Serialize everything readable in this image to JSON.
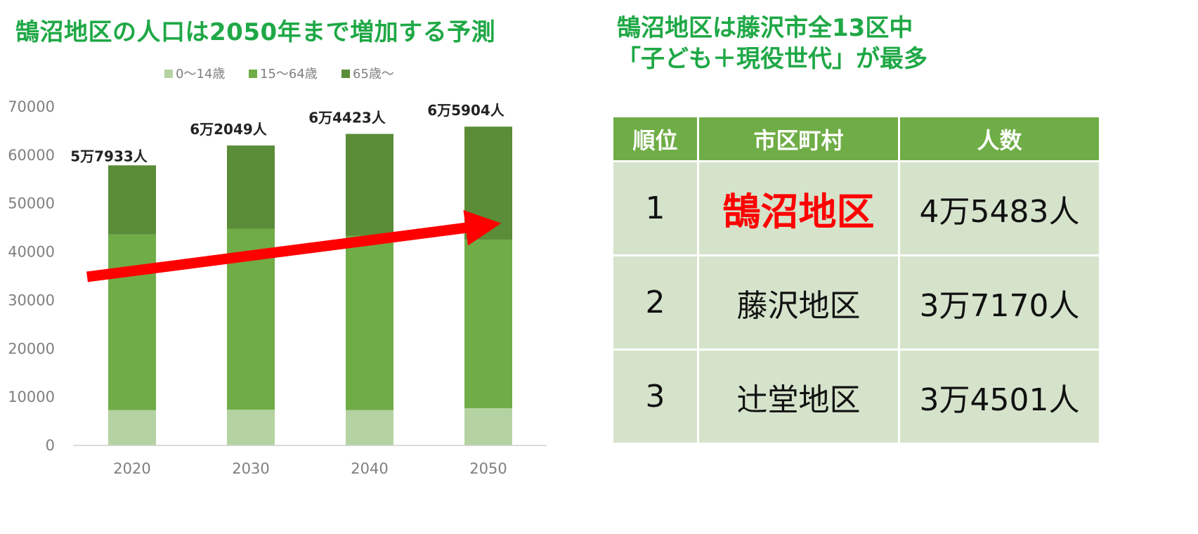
{
  "left_title": "鵠沼地区の人口は2050年まで増加する予測",
  "right_title": {
    "line1": "鵠沼地区は藤沢市全13区中",
    "line2": "「子ども＋現役世代」が最多"
  },
  "chart_data": {
    "type": "bar",
    "stacked": true,
    "categories": [
      "2020",
      "2030",
      "2040",
      "2050"
    ],
    "series": [
      {
        "name": "0〜14歳",
        "color": "#b5d3a2",
        "values": [
          7300,
          7400,
          7300,
          7700
        ]
      },
      {
        "name": "15〜64歳",
        "color": "#70ad47",
        "values": [
          36300,
          37400,
          36000,
          34800
        ]
      },
      {
        "name": "65歳〜",
        "color": "#5b8c37",
        "values": [
          14300,
          17200,
          21100,
          23400
        ]
      }
    ],
    "totals_labels": [
      "5万7933人",
      "6万2049人",
      "6万4423人",
      "6万5904人"
    ],
    "ylim": [
      0,
      70000
    ],
    "yticks": [
      "0",
      "10000",
      "20000",
      "30000",
      "40000",
      "50000",
      "60000",
      "70000"
    ],
    "legend_position": "top",
    "grid": false,
    "trend_arrow_color": "#ff0000"
  },
  "table": {
    "headers": [
      "順位",
      "市区町村",
      "人数"
    ],
    "rows": [
      {
        "rank": "1",
        "name": "鵠沼地区",
        "count": "4万5483人"
      },
      {
        "rank": "2",
        "name": "藤沢地区",
        "count": "3万7170人"
      },
      {
        "rank": "3",
        "name": "辻堂地区",
        "count": "3万4501人"
      }
    ],
    "colors": {
      "header_bg": "#6fad46",
      "cell_bg": "#d5e3cb",
      "highlight_text": "#ff0000"
    }
  }
}
